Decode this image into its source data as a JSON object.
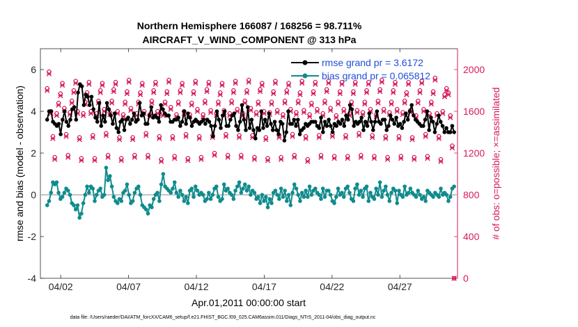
{
  "chart_data": {
    "type": "line",
    "title": [
      "Northern Hemisphere 166087 / 168256 = 98.711%",
      "AIRCRAFT_V_WIND_COMPONENT @ 313 hPa"
    ],
    "xlabel": "Apr.01,2011 00:00:00 start",
    "ylabel_left": "rmse and bias (model - observation)",
    "ylabel_right": "# of obs: o=possible; ×=assimilated",
    "footnote": "data file: /Users/raeder/DAI/ATM_forcXX/CAM6_setup/f.e21.FHIST_BGC.f09_025.CAM6assim.011/Diags_NTrS_2011-04/obs_diag_output.nc",
    "x_range": [
      0.5,
      31.25
    ],
    "x_ticks": [
      2,
      7,
      12,
      17,
      22,
      27
    ],
    "x_tick_labels": [
      "04/02",
      "04/07",
      "04/12",
      "04/17",
      "04/22",
      "04/27"
    ],
    "y_left": {
      "range": [
        -4,
        7
      ],
      "ticks": [
        -4,
        -2,
        0,
        2,
        4,
        6
      ],
      "tick_labels": [
        "-4",
        "-2",
        "0",
        "2",
        "4",
        "6"
      ]
    },
    "y_right": {
      "range": [
        0,
        2200
      ],
      "ticks": [
        0,
        400,
        800,
        1200,
        1600,
        2000
      ],
      "tick_labels": [
        "0",
        "400",
        "800",
        "1200",
        "1600",
        "2000"
      ]
    },
    "legend": {
      "placement": "top-right",
      "entries": [
        "rmse grand pr = 3.6172",
        "bias grand pr = 0.065812"
      ]
    },
    "colors": {
      "rmse": "#000000",
      "bias": "#0f8b8d",
      "obs": "#d6195f",
      "zero_line": "#b0b0b0"
    },
    "series": [
      {
        "name": "rmse grand pr = 3.6172",
        "axis": "left",
        "values": [
          3.6,
          4.0,
          4.0,
          3.5,
          3.4,
          3.3,
          3.4,
          2.9,
          3.6,
          4.0,
          3.5,
          3.3,
          3.6,
          4.1,
          4.2,
          3.6,
          4.9,
          5.3,
          5.2,
          4.3,
          4.8,
          4.7,
          4.3,
          4.7,
          4.1,
          3.7,
          3.5,
          4.4,
          3.3,
          3.8,
          3.5,
          4.4,
          4.1,
          3.8,
          3.4,
          3.9,
          3.2,
          3.0,
          3.5,
          3.6,
          3.1,
          3.6,
          3.7,
          3.4,
          3.6,
          3.9,
          3.5,
          3.6,
          4.4,
          3.8,
          3.9,
          3.4,
          3.4,
          3.8,
          4.2,
          3.7,
          3.8,
          3.7,
          3.5,
          4.3,
          4.1,
          3.9,
          3.8,
          3.8,
          3.5,
          3.5,
          3.6,
          3.6,
          3.7,
          3.3,
          3.5,
          4.0,
          3.4,
          3.9,
          3.7,
          3.3,
          3.5,
          3.6,
          3.5,
          3.4,
          3.5,
          3.6,
          3.4,
          3.6,
          3.5,
          3.3,
          2.8,
          3.3,
          4.0,
          3.6,
          3.2,
          3.8,
          4.0,
          3.3,
          3.3,
          3.6,
          3.8,
          3.9,
          3.3,
          3.1,
          3.5,
          4.3,
          3.6,
          3.1,
          4.2,
          3.2,
          3.6,
          3.1,
          2.7,
          3.2,
          3.1,
          4.0,
          3.2,
          3.6,
          3.3,
          3.9,
          3.4,
          3.1,
          3.5,
          3.1,
          2.9,
          3.5,
          3.4,
          2.6,
          3.0,
          4.0,
          3.4,
          3.4,
          3.6,
          3.3,
          3.6,
          2.9,
          3.1,
          3.2,
          3.4,
          3.3,
          3.4,
          3.5,
          3.5,
          3.5,
          3.3,
          3.2,
          3.7,
          3.0,
          3.5,
          3.3,
          3.6,
          3.3,
          3.0,
          3.4,
          3.3,
          3.5,
          3.4,
          3.6,
          3.3,
          3.8,
          3.6,
          4.3,
          4.1,
          3.3,
          3.5,
          3.4,
          3.5,
          3.7,
          3.1,
          3.5,
          3.3,
          3.9,
          3.5,
          3.1,
          3.5,
          4.0,
          3.5,
          3.4,
          3.6,
          3.6,
          3.1,
          3.3,
          3.8,
          3.6,
          3.4,
          3.7,
          3.3,
          3.4,
          3.2,
          3.5,
          3.9,
          3.6,
          4.0,
          4.3,
          3.8,
          3.6,
          3.5,
          3.4,
          3.3,
          3.3,
          3.6,
          4.0,
          3.1,
          3.7,
          3.5,
          3.0,
          3.4,
          3.8,
          3.5,
          3.3,
          3.0,
          3.2,
          3.0,
          3.0,
          3.3,
          3.0
        ]
      },
      {
        "name": "bias grand pr = 0.065812",
        "axis": "left",
        "values": [
          -0.5,
          -0.3,
          0.1,
          0.6,
          0.5,
          0.6,
          0.1,
          -0.2,
          -0.1,
          0.1,
          0.3,
          0.2,
          0.0,
          -0.4,
          -0.5,
          -0.7,
          -0.5,
          -1.1,
          -0.9,
          -0.4,
          0.0,
          0.4,
          0.1,
          0.4,
          0.3,
          -0.3,
          0.0,
          0.2,
          0.3,
          -0.1,
          0.0,
          1.3,
          0.7,
          0.9,
          0.4,
          -0.1,
          -0.3,
          -0.4,
          -0.2,
          -0.3,
          0.1,
          0.2,
          0.5,
          0.0,
          -0.4,
          -0.3,
          0.1,
          0.3,
          0.4,
          0.0,
          -0.5,
          -0.6,
          -0.7,
          -0.9,
          -0.5,
          -0.6,
          -0.2,
          0.0,
          0.1,
          -0.3,
          0.5,
          1.0,
          0.4,
          0.3,
          0.2,
          0.1,
          0.3,
          0.6,
          0.1,
          -0.1,
          0.2,
          0.0,
          -0.3,
          -0.1,
          -0.4,
          0.2,
          0.3,
          -0.1,
          0.4,
          0.2,
          0.0,
          0.1,
          0.0,
          -0.3,
          -0.2,
          0.1,
          -0.2,
          0.0,
          0.3,
          0.4,
          -0.1,
          -0.3,
          -0.2,
          0.5,
          0.2,
          0.3,
          0.1,
          0.0,
          -0.2,
          0.2,
          0.4,
          0.6,
          0.1,
          0.3,
          0.5,
          0.2,
          0.4,
          0.0,
          0.2,
          0.1,
          -0.2,
          -0.1,
          -0.4,
          0.0,
          -0.3,
          -0.1,
          -0.6,
          -0.2,
          -0.4,
          0.1,
          0.2,
          0.0,
          -0.2,
          0.3,
          -0.1,
          0.2,
          -0.3,
          0.0,
          -0.5,
          0.1,
          0.5,
          0.3,
          0.0,
          -0.3,
          0.1,
          -0.1,
          0.2,
          -0.1,
          0.4,
          0.0,
          0.2,
          0.3,
          0.1,
          0.0,
          -0.2,
          0.3,
          -0.1,
          0.2,
          0.2,
          0.0,
          -0.3,
          -0.4,
          -0.1,
          0.3,
          0.0,
          0.1,
          -0.1,
          0.3,
          0.4,
          0.1,
          -0.2,
          -0.3,
          0.3,
          0.5,
          0.0,
          0.2,
          -0.1,
          0.3,
          0.4,
          -0.3,
          0.1,
          -0.1,
          -0.2,
          0.3,
          0.0,
          0.6,
          -0.1,
          0.2,
          0.4,
          0.0,
          -0.3,
          0.1,
          0.3,
          0.2,
          -0.4,
          0.2,
          0.0,
          -0.1,
          0.4,
          0.0,
          0.1,
          0.3,
          0.1,
          0.0,
          -0.1,
          0.2,
          0.0,
          -0.2,
          -0.1,
          -0.3,
          0.2,
          0.1,
          0.0,
          -0.1,
          0.1,
          0.0,
          -0.1,
          0.3,
          0.0,
          0.1,
          0.0,
          -0.3,
          -0.1,
          0.3,
          0.4
        ]
      },
      {
        "name": "# of obs possible",
        "axis": "right",
        "marker": "o",
        "values": [
          1820,
          1980,
          1600,
          1360,
          1160,
          1580,
          1680,
          1770,
          1870,
          1630,
          1380,
          1180,
          1590,
          1700,
          1800,
          1890,
          1600,
          1350,
          1150,
          1580,
          1690,
          1780,
          1880,
          1600,
          1370,
          1150,
          1580,
          1700,
          1800,
          1870,
          1620,
          1390,
          1180,
          1590,
          1700,
          1810,
          1880,
          1600,
          1350,
          1150,
          1570,
          1690,
          1790,
          1900,
          1630,
          1350,
          1180,
          1580,
          1690,
          1780,
          1870,
          1600,
          1390,
          1180,
          1570,
          1700,
          1800,
          1880,
          1600,
          1360,
          1140,
          1580,
          1690,
          1790,
          1900,
          1640,
          1360,
          1170,
          1570,
          1690,
          1800,
          1870,
          1600,
          1380,
          1150,
          1570,
          1680,
          1790,
          1890,
          1620,
          1360,
          1160,
          1570,
          1700,
          1810,
          1880,
          1610,
          1370,
          1200,
          1580,
          1690,
          1780,
          1870,
          1610,
          1380,
          1180,
          1580,
          1700,
          1800,
          1890,
          1620,
          1370,
          1180,
          1580,
          1700,
          1800,
          1900,
          1630,
          1370,
          1160,
          1590,
          1690,
          1810,
          1870,
          1600,
          1350,
          1150,
          1590,
          1690,
          1790,
          1890,
          1610,
          1370,
          1160,
          1570,
          1700,
          1800,
          1870,
          1620,
          1380,
          1180,
          1590,
          1700,
          1780,
          1890,
          1610,
          1360,
          1140,
          1570,
          1680,
          1790,
          1880,
          1620,
          1370,
          1180,
          1580,
          1700,
          1810,
          1890,
          1630,
          1380,
          1170,
          1560,
          1690,
          1790,
          1880,
          1620,
          1370,
          1170,
          1580,
          1690,
          1790,
          1880,
          1610,
          1390,
          1180,
          1590,
          1690,
          1800,
          1880,
          1620,
          1370,
          1170,
          1570,
          1700,
          1810,
          1900,
          1620,
          1360,
          1160,
          1590,
          1690,
          1800,
          1880,
          1620,
          1360,
          1170,
          1590,
          1700,
          1780,
          1880,
          1610,
          1350,
          1160,
          1560,
          1700,
          1800,
          1890,
          1620,
          1380,
          1170,
          1580,
          1690,
          1790,
          1920,
          1580,
          1360,
          1140,
          1600,
          1760,
          1820,
          1780,
          1560,
          1270,
          0
        ]
      },
      {
        "name": "# of obs assimilated",
        "axis": "right",
        "marker": "x",
        "values": [
          1800,
          1960,
          1580,
          1340,
          1140,
          1560,
          1660,
          1750,
          1850,
          1610,
          1360,
          1160,
          1570,
          1680,
          1780,
          1870,
          1580,
          1330,
          1130,
          1560,
          1670,
          1760,
          1860,
          1580,
          1350,
          1130,
          1560,
          1680,
          1780,
          1850,
          1600,
          1370,
          1160,
          1570,
          1680,
          1790,
          1860,
          1580,
          1330,
          1130,
          1550,
          1670,
          1770,
          1880,
          1610,
          1330,
          1160,
          1560,
          1670,
          1760,
          1850,
          1580,
          1370,
          1160,
          1550,
          1680,
          1780,
          1860,
          1580,
          1340,
          1120,
          1560,
          1670,
          1770,
          1880,
          1620,
          1340,
          1150,
          1550,
          1670,
          1780,
          1850,
          1580,
          1360,
          1130,
          1550,
          1660,
          1770,
          1870,
          1600,
          1340,
          1140,
          1550,
          1680,
          1790,
          1860,
          1590,
          1350,
          1180,
          1560,
          1670,
          1760,
          1850,
          1590,
          1360,
          1160,
          1560,
          1680,
          1780,
          1870,
          1600,
          1350,
          1160,
          1560,
          1680,
          1780,
          1880,
          1610,
          1350,
          1140,
          1570,
          1670,
          1790,
          1850,
          1580,
          1330,
          1130,
          1570,
          1670,
          1770,
          1870,
          1590,
          1350,
          1140,
          1550,
          1680,
          1780,
          1850,
          1600,
          1360,
          1160,
          1570,
          1680,
          1760,
          1870,
          1590,
          1340,
          1120,
          1550,
          1660,
          1770,
          1860,
          1600,
          1350,
          1160,
          1560,
          1680,
          1790,
          1870,
          1610,
          1360,
          1150,
          1540,
          1670,
          1770,
          1860,
          1600,
          1350,
          1150,
          1560,
          1670,
          1770,
          1860,
          1590,
          1370,
          1160,
          1570,
          1670,
          1780,
          1860,
          1600,
          1350,
          1150,
          1550,
          1680,
          1790,
          1880,
          1600,
          1340,
          1140,
          1570,
          1670,
          1780,
          1860,
          1600,
          1340,
          1150,
          1570,
          1680,
          1760,
          1860,
          1590,
          1330,
          1140,
          1540,
          1680,
          1780,
          1870,
          1600,
          1360,
          1150,
          1560,
          1670,
          1770,
          1900,
          1560,
          1340,
          1120,
          1580,
          1740,
          1800,
          1760,
          1540,
          1250,
          0
        ]
      }
    ]
  }
}
